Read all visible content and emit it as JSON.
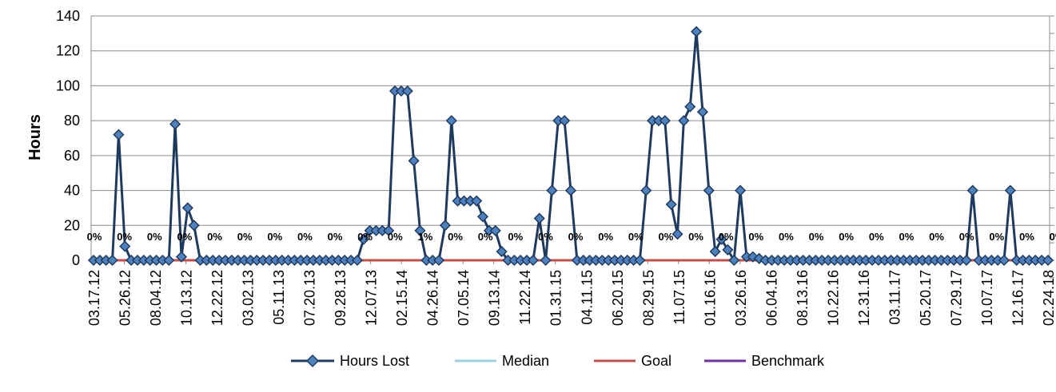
{
  "chart_data": {
    "type": "line",
    "title": "",
    "xlabel": "",
    "ylabel": "Hours",
    "ylim": [
      0,
      140
    ],
    "yticks": [
      0,
      20,
      40,
      60,
      80,
      100,
      120,
      140
    ],
    "grid": true,
    "legend_position": "bottom",
    "x_tick_labels": [
      "03.17.12",
      "05.26.12",
      "08.04.12",
      "10.13.12",
      "12.22.12",
      "03.02.13",
      "05.11.13",
      "07.20.13",
      "09.28.13",
      "12.07.13",
      "02.15.14",
      "04.26.14",
      "07.05.14",
      "09.13.14",
      "11.22.14",
      "01.31.15",
      "04.11.15",
      "06.20.15",
      "08.29.15",
      "11.07.15",
      "01.16.16",
      "03.26.16",
      "06.04.16",
      "08.13.16",
      "10.22.16",
      "12.31.16",
      "03.11.17",
      "05.20.17",
      "07.29.17",
      "10.07.17",
      "12.16.17",
      "02.24.18"
    ],
    "percent_labels": [
      "0%",
      "0%",
      "0%",
      "0%",
      "0%",
      "0%",
      "0%",
      "0%",
      "0%",
      "0%",
      "0%",
      "1%",
      "0%",
      "0%",
      "0%",
      "0%",
      "0%",
      "0%",
      "0%",
      "0%",
      "0%",
      "0%",
      "0%",
      "0%",
      "0%",
      "0%",
      "0%",
      "0%",
      "0%",
      "0%",
      "0%",
      "0%",
      "0%"
    ],
    "series": [
      {
        "name": "Hours Lost",
        "color": "#1f3a5f",
        "marker_color": "#1f3a5f",
        "values": [
          0,
          0,
          0,
          0,
          72,
          8,
          0,
          0,
          0,
          0,
          0,
          0,
          0,
          78,
          2,
          30,
          20,
          0,
          0,
          0,
          0,
          0,
          0,
          0,
          0,
          0,
          0,
          0,
          0,
          0,
          0,
          0,
          0,
          0,
          0,
          0,
          0,
          0,
          0,
          0,
          0,
          0,
          0,
          12,
          17,
          17,
          17,
          17,
          97,
          97,
          97,
          57,
          17,
          0,
          0,
          0,
          20,
          80,
          34,
          34,
          34,
          34,
          25,
          17,
          17,
          5,
          0,
          0,
          0,
          0,
          0,
          24,
          0,
          40,
          80,
          80,
          40,
          0,
          0,
          0,
          0,
          0,
          0,
          0,
          0,
          0,
          0,
          0,
          40,
          80,
          80,
          80,
          32,
          15,
          80,
          88,
          131,
          85,
          40,
          5,
          12,
          6,
          0,
          40,
          2,
          2,
          1,
          0,
          0,
          0,
          0,
          0,
          0,
          0,
          0,
          0,
          0,
          0,
          0,
          0,
          0,
          0,
          0,
          0,
          0,
          0,
          0,
          0,
          0,
          0,
          0,
          0,
          0,
          0,
          0,
          0,
          0,
          0,
          0,
          0,
          40,
          0,
          0,
          0,
          0,
          0,
          40,
          0,
          0,
          0,
          0,
          0,
          0
        ]
      },
      {
        "name": "Median",
        "color": "#9fd0e0",
        "values": []
      },
      {
        "name": "Goal",
        "color": "#c0504d",
        "values": [
          0,
          0
        ]
      },
      {
        "name": "Benchmark",
        "color": "#7030a0",
        "values": []
      }
    ]
  }
}
